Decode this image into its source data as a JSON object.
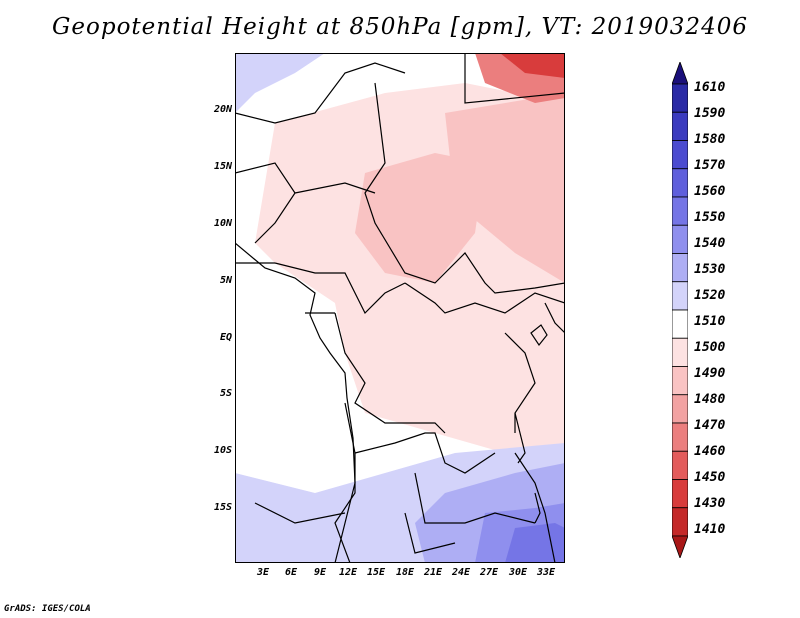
{
  "title": "Geopotential Height at 850hPa [gpm], VT: 2019032406",
  "credit": "GrADS: IGES/COLA",
  "map": {
    "lat_labels": [
      "20N",
      "15N",
      "10N",
      "5N",
      "EQ",
      "5S",
      "10S",
      "15S"
    ],
    "lon_labels": [
      "3E",
      "6E",
      "9E",
      "12E",
      "15E",
      "18E",
      "21E",
      "24E",
      "27E",
      "30E",
      "33E"
    ]
  },
  "colorbar": {
    "levels": [
      "1610",
      "1590",
      "1580",
      "1570",
      "1560",
      "1550",
      "1540",
      "1530",
      "1520",
      "1510",
      "1500",
      "1490",
      "1480",
      "1470",
      "1460",
      "1450",
      "1430",
      "1410"
    ],
    "colors": [
      "#1a0f7a",
      "#2a2aa6",
      "#3b3bbf",
      "#4b4bd0",
      "#5f5fdc",
      "#7575e6",
      "#8f8fee",
      "#aeaef4",
      "#d3d3fa",
      "#ffffff",
      "#fde2e2",
      "#f9c3c3",
      "#f2a2a2",
      "#eb7e7e",
      "#e35b5b",
      "#d83c3c",
      "#c42828",
      "#a81717"
    ]
  }
}
